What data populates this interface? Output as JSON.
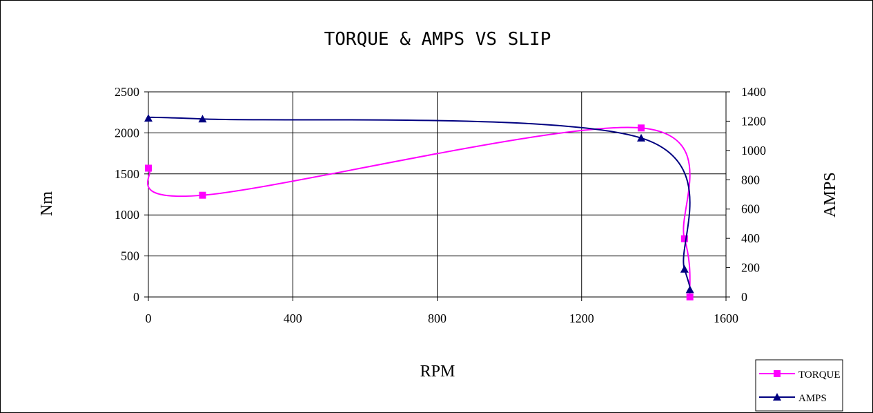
{
  "chart_data": {
    "type": "line",
    "title": "TORQUE & AMPS VS SLIP",
    "xlabel": "RPM",
    "ylabel": "Nm",
    "y2label": "AMPS",
    "xlim": [
      0,
      1600
    ],
    "ylim": [
      0,
      2500
    ],
    "y2lim": [
      0,
      1400
    ],
    "xticks": [
      0,
      400,
      800,
      1200,
      1600
    ],
    "yticks": [
      0,
      500,
      1000,
      1500,
      2000,
      2500
    ],
    "y2ticks": [
      0,
      200,
      400,
      600,
      800,
      1000,
      1200,
      1400
    ],
    "grid": true,
    "legend": "bottom-right",
    "series": [
      {
        "name": "TORQUE",
        "axis": "left",
        "color": "#ff00ff",
        "marker": "square",
        "points": [
          {
            "x": 0,
            "y": 1570
          },
          {
            "x": 150,
            "y": 1240
          },
          {
            "x": 1365,
            "y": 2060
          },
          {
            "x": 1485,
            "y": 710
          },
          {
            "x": 1500,
            "y": 0
          }
        ]
      },
      {
        "name": "AMPS",
        "axis": "right",
        "color": "#000080",
        "marker": "triangle",
        "points": [
          {
            "x": 0,
            "y": 1220
          },
          {
            "x": 150,
            "y": 1215
          },
          {
            "x": 1365,
            "y": 1085
          },
          {
            "x": 1485,
            "y": 190
          },
          {
            "x": 1500,
            "y": 50
          }
        ]
      }
    ]
  }
}
